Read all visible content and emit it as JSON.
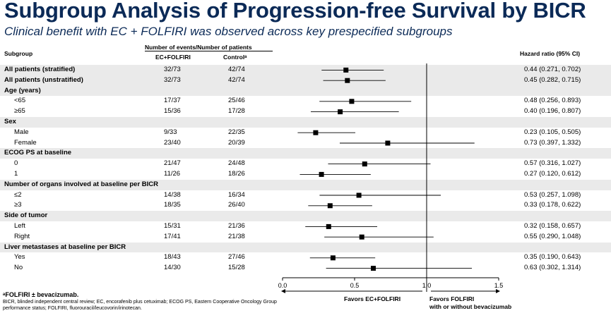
{
  "title": "Subgroup Analysis of Progression-free Survival by BICR",
  "subtitle": "Clinical benefit with EC + FOLFIRI was observed across key prespecified subgroups",
  "headers": {
    "subgroup": "Subgroup",
    "events": "Number of events/Number of patients",
    "ec": "EC+FOLFIRI",
    "control": "Controlᵃ",
    "hr": "Hazard ratio (95% CI)"
  },
  "rows": [
    {
      "label": "All patients (stratified)",
      "type": "sec",
      "shade": true,
      "ec": "32/73",
      "control": "42/74",
      "hr_text": "0.44 (0.271, 0.702)"
    },
    {
      "label": "All patients (unstratified)",
      "type": "sec",
      "shade": true,
      "ec": "32/73",
      "control": "42/74",
      "hr_text": "0.45 (0.282, 0.715)"
    },
    {
      "label": "Age (years)",
      "type": "sec",
      "shade": true,
      "ec": "",
      "control": "",
      "hr_text": ""
    },
    {
      "label": "<65",
      "type": "sub",
      "shade": false,
      "ec": "17/37",
      "control": "25/46",
      "hr_text": "0.48 (0.256, 0.893)"
    },
    {
      "label": "≥65",
      "type": "sub",
      "shade": false,
      "ec": "15/36",
      "control": "17/28",
      "hr_text": "0.40 (0.196, 0.807)"
    },
    {
      "label": "Sex",
      "type": "sec",
      "shade": true,
      "ec": "",
      "control": "",
      "hr_text": ""
    },
    {
      "label": "Male",
      "type": "sub",
      "shade": false,
      "ec": "9/33",
      "control": "22/35",
      "hr_text": "0.23 (0.105, 0.505)"
    },
    {
      "label": "Female",
      "type": "sub",
      "shade": false,
      "ec": "23/40",
      "control": "20/39",
      "hr_text": "0.73 (0.397, 1.332)"
    },
    {
      "label": "ECOG PS at baseline",
      "type": "sec",
      "shade": true,
      "ec": "",
      "control": "",
      "hr_text": ""
    },
    {
      "label": "0",
      "type": "sub",
      "shade": false,
      "ec": "21/47",
      "control": "24/48",
      "hr_text": "0.57 (0.316, 1.027)"
    },
    {
      "label": "1",
      "type": "sub",
      "shade": false,
      "ec": "11/26",
      "control": "18/26",
      "hr_text": "0.27 (0.120, 0.612)"
    },
    {
      "label": "Number of organs involved at baseline per BICR",
      "type": "sec",
      "shade": true,
      "ec": "",
      "control": "",
      "hr_text": ""
    },
    {
      "label": "≤2",
      "type": "sub",
      "shade": false,
      "ec": "14/38",
      "control": "16/34",
      "hr_text": "0.53 (0.257, 1.098)"
    },
    {
      "label": "≥3",
      "type": "sub",
      "shade": false,
      "ec": "18/35",
      "control": "26/40",
      "hr_text": "0.33 (0.178, 0.622)"
    },
    {
      "label": "Side of tumor",
      "type": "sec",
      "shade": true,
      "ec": "",
      "control": "",
      "hr_text": ""
    },
    {
      "label": "Left",
      "type": "sub",
      "shade": false,
      "ec": "15/31",
      "control": "21/36",
      "hr_text": "0.32 (0.158, 0.657)"
    },
    {
      "label": "Right",
      "type": "sub",
      "shade": false,
      "ec": "17/41",
      "control": "21/38",
      "hr_text": "0.55 (0.290, 1.048)"
    },
    {
      "label": "Liver metastases at baseline per BICR",
      "type": "sec",
      "shade": true,
      "ec": "",
      "control": "",
      "hr_text": ""
    },
    {
      "label": "Yes",
      "type": "sub",
      "shade": false,
      "ec": "18/43",
      "control": "27/46",
      "hr_text": "0.35 (0.190, 0.643)"
    },
    {
      "label": "No",
      "type": "sub",
      "shade": false,
      "ec": "14/30",
      "control": "15/28",
      "hr_text": "0.63 (0.302, 1.314)"
    }
  ],
  "chart_data": {
    "type": "scatter",
    "subtype": "forest",
    "xlim": [
      0,
      1.5
    ],
    "xticks": [
      0.0,
      0.5,
      1.0,
      1.5
    ],
    "xtick_labels": [
      "0.0",
      "0.5",
      "1.0",
      "1.5"
    ],
    "reference_line": 1.0,
    "points": [
      {
        "row": 0,
        "hr": 0.44,
        "lo": 0.271,
        "hi": 0.702
      },
      {
        "row": 1,
        "hr": 0.45,
        "lo": 0.282,
        "hi": 0.715
      },
      {
        "row": 3,
        "hr": 0.48,
        "lo": 0.256,
        "hi": 0.893
      },
      {
        "row": 4,
        "hr": 0.4,
        "lo": 0.196,
        "hi": 0.807
      },
      {
        "row": 6,
        "hr": 0.23,
        "lo": 0.105,
        "hi": 0.505
      },
      {
        "row": 7,
        "hr": 0.73,
        "lo": 0.397,
        "hi": 1.332
      },
      {
        "row": 9,
        "hr": 0.57,
        "lo": 0.316,
        "hi": 1.027
      },
      {
        "row": 10,
        "hr": 0.27,
        "lo": 0.12,
        "hi": 0.612
      },
      {
        "row": 12,
        "hr": 0.53,
        "lo": 0.257,
        "hi": 1.098
      },
      {
        "row": 13,
        "hr": 0.33,
        "lo": 0.178,
        "hi": 0.622
      },
      {
        "row": 15,
        "hr": 0.32,
        "lo": 0.158,
        "hi": 0.657
      },
      {
        "row": 16,
        "hr": 0.55,
        "lo": 0.29,
        "hi": 1.048
      },
      {
        "row": 18,
        "hr": 0.35,
        "lo": 0.19,
        "hi": 0.643
      },
      {
        "row": 19,
        "hr": 0.63,
        "lo": 0.302,
        "hi": 1.314
      }
    ],
    "favors_left": "Favors EC+FOLFIRI",
    "favors_right_1": "Favors FOLFIRI",
    "favors_right_2": "with or without bevacizumab"
  },
  "footnotes": {
    "a": "ᵃFOLFIRI ± bevacizumab.",
    "abbr1": "BICR, blinded independent central review; EC, encorafenib plus cetuximab; ECOG PS, Eastern Cooperative Oncology Group",
    "abbr2": "performance status; FOLFIRI, fluorouracil/leucovorin/irinotecan."
  },
  "colors": {
    "title": "#0b2a57",
    "shade": "#eaeaea",
    "marker": "#000000"
  }
}
